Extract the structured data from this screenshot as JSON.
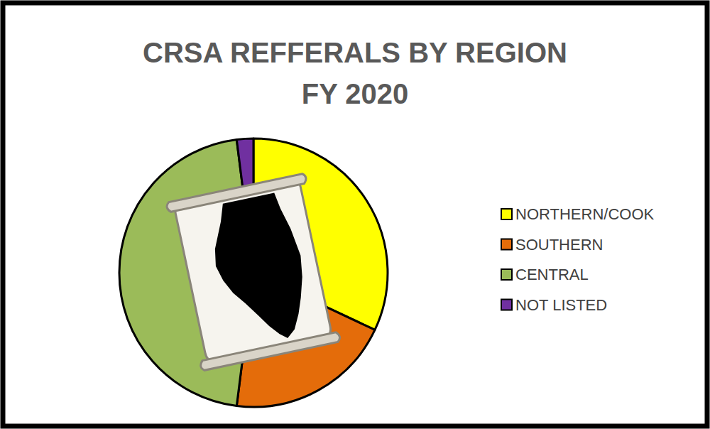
{
  "chart_data": {
    "type": "pie",
    "title": "CRSA REFFERALS BY REGION",
    "subtitle": "FY 2020",
    "categories": [
      "NORTHERN/COOK",
      "SOUTHERN",
      "CENTRAL",
      "NOT LISTED"
    ],
    "values": [
      32,
      20,
      46,
      2
    ],
    "colors": [
      "#ffff00",
      "#e46c0a",
      "#9bbb59",
      "#7030a0"
    ],
    "legend": "right"
  }
}
